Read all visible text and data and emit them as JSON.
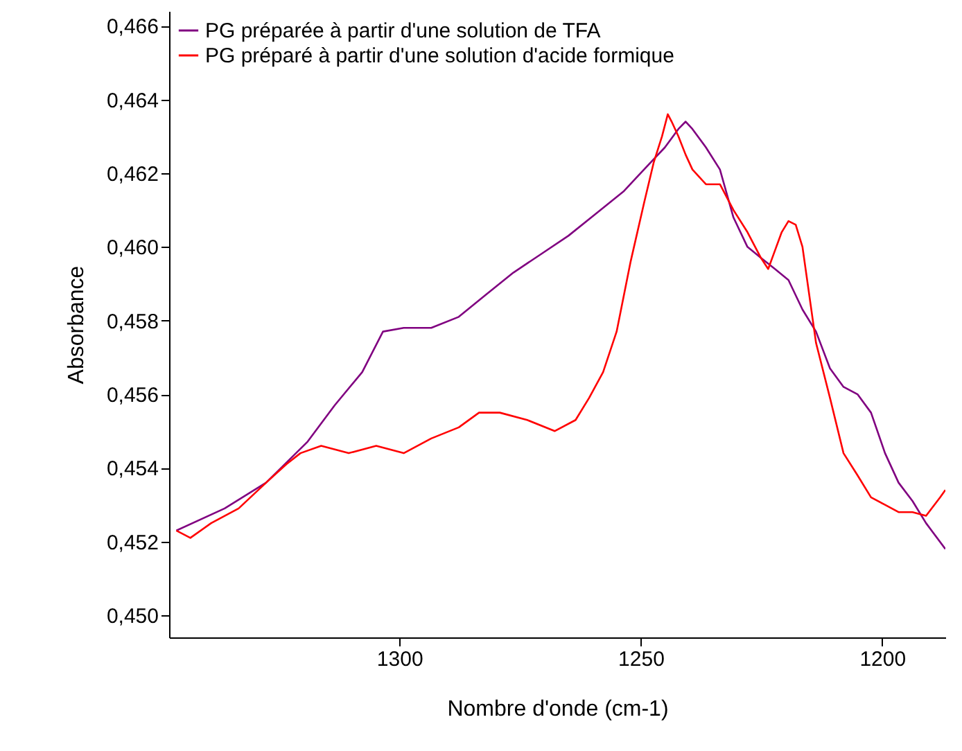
{
  "chart_data": {
    "type": "line",
    "xlabel": "Nombre d'onde (cm-1)",
    "ylabel": "Absorbance",
    "xlim": [
      1347.7,
      1186.9
    ],
    "ylim": [
      0.4494,
      0.4664
    ],
    "xticks": [
      1300,
      1250,
      1200
    ],
    "yticks": [
      {
        "value": 0.45,
        "label": "0,450"
      },
      {
        "value": 0.452,
        "label": "0,452"
      },
      {
        "value": 0.454,
        "label": "0,454"
      },
      {
        "value": 0.456,
        "label": "0,456"
      },
      {
        "value": 0.458,
        "label": "0,458"
      },
      {
        "value": 0.46,
        "label": "0,460"
      },
      {
        "value": 0.462,
        "label": "0,462"
      },
      {
        "value": 0.464,
        "label": "0,464"
      },
      {
        "value": 0.466,
        "label": "0,466"
      }
    ],
    "grid": false,
    "legend": "top left",
    "line_style": "solid",
    "marker": "none",
    "series": [
      {
        "name": "PG préparée à partir d'une solution de TFA",
        "color": "#800080",
        "x": [
          1346.2,
          1336.2,
          1327.6,
          1319.1,
          1313.4,
          1307.7,
          1303.4,
          1299.1,
          1293.4,
          1287.7,
          1282.1,
          1276.4,
          1270.7,
          1265.0,
          1259.3,
          1253.6,
          1247.9,
          1245.0,
          1242.2,
          1240.7,
          1239.3,
          1236.5,
          1233.6,
          1230.8,
          1227.9,
          1225.1,
          1222.2,
          1219.4,
          1216.5,
          1213.7,
          1210.8,
          1208.0,
          1205.1,
          1202.3,
          1199.4,
          1196.6,
          1193.7,
          1190.9,
          1186.9
        ],
        "values": [
          0.4523,
          0.4529,
          0.4536,
          0.4547,
          0.4557,
          0.4566,
          0.4577,
          0.4578,
          0.4578,
          0.4581,
          0.4587,
          0.4593,
          0.4598,
          0.4603,
          0.4609,
          0.4615,
          0.4623,
          0.4627,
          0.4632,
          0.4634,
          0.4632,
          0.4627,
          0.4621,
          0.4608,
          0.46,
          0.4597,
          0.4594,
          0.4591,
          0.4583,
          0.4577,
          0.4567,
          0.4562,
          0.456,
          0.4555,
          0.4544,
          0.4536,
          0.4531,
          0.4525,
          0.4518
        ]
      },
      {
        "name": "PG préparé à partir d'une solution d'acide formique",
        "color": "#ff0000",
        "x": [
          1346.2,
          1343.3,
          1339.0,
          1333.3,
          1327.6,
          1323.4,
          1320.5,
          1316.2,
          1310.5,
          1304.8,
          1299.1,
          1293.4,
          1287.7,
          1283.5,
          1279.2,
          1273.5,
          1267.8,
          1263.5,
          1260.7,
          1257.8,
          1255.0,
          1252.1,
          1249.3,
          1247.3,
          1245.6,
          1244.4,
          1243.6,
          1242.2,
          1240.7,
          1239.3,
          1236.5,
          1233.6,
          1230.8,
          1227.9,
          1225.1,
          1223.6,
          1222.2,
          1220.8,
          1219.4,
          1217.9,
          1216.5,
          1213.7,
          1210.8,
          1208.0,
          1205.1,
          1202.3,
          1199.4,
          1196.6,
          1193.7,
          1190.9,
          1188.0,
          1186.9
        ],
        "values": [
          0.4523,
          0.4521,
          0.4525,
          0.4529,
          0.4536,
          0.4541,
          0.4544,
          0.4546,
          0.4544,
          0.4546,
          0.4544,
          0.4548,
          0.4551,
          0.4555,
          0.4555,
          0.4553,
          0.455,
          0.4553,
          0.4559,
          0.4566,
          0.4577,
          0.4596,
          0.4612,
          0.4623,
          0.463,
          0.4636,
          0.4634,
          0.463,
          0.4625,
          0.4621,
          0.4617,
          0.4617,
          0.461,
          0.4604,
          0.4597,
          0.4594,
          0.4599,
          0.4604,
          0.4607,
          0.4606,
          0.46,
          0.4574,
          0.4559,
          0.4544,
          0.4538,
          0.4532,
          0.453,
          0.4528,
          0.4528,
          0.4527,
          0.4532,
          0.4534
        ]
      }
    ]
  }
}
